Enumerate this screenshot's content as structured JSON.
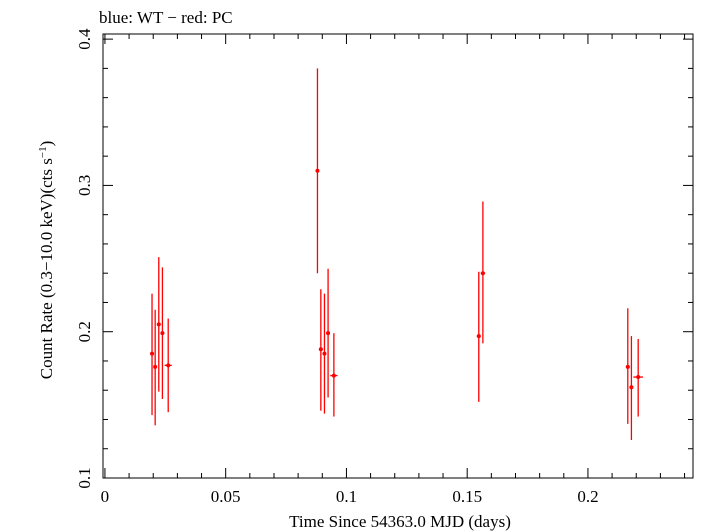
{
  "chart_data": {
    "type": "scatter",
    "title": "blue: WT − red: PC",
    "xlabel": "Time Since 54363.0 MJD (days)",
    "ylabel_main": "Count Rate (0.3−10.0 keV)(cts s",
    "ylabel_sup": "−1",
    "ylabel_close": ")",
    "xlim": [
      -0.0008,
      0.2435
    ],
    "ylim": [
      0.1,
      0.4035
    ],
    "x_ticks": [
      {
        "value": 0,
        "label": "0"
      },
      {
        "value": 0.05,
        "label": "0.05"
      },
      {
        "value": 0.1,
        "label": "0.1"
      },
      {
        "value": 0.15,
        "label": "0.15"
      },
      {
        "value": 0.2,
        "label": "0.2"
      }
    ],
    "x_minor_step": 0.01,
    "y_ticks": [
      {
        "value": 0.1,
        "label": "0.1"
      },
      {
        "value": 0.2,
        "label": "0.2"
      },
      {
        "value": 0.3,
        "label": "0.3"
      },
      {
        "value": 0.4,
        "label": "0.4"
      }
    ],
    "y_minor_step": 0.02,
    "series": [
      {
        "name": "PC",
        "color": "#ff0000",
        "points": [
          {
            "x": 0.0195,
            "y": 0.185,
            "xerr": 0.0008,
            "yerr": [
              0.042,
              0.041
            ]
          },
          {
            "x": 0.0208,
            "y": 0.176,
            "xerr": 0.0007,
            "yerr": [
              0.04,
              0.039
            ]
          },
          {
            "x": 0.0223,
            "y": 0.205,
            "xerr": 0.0008,
            "yerr": [
              0.046,
              0.046
            ]
          },
          {
            "x": 0.0238,
            "y": 0.199,
            "xerr": 0.0008,
            "yerr": [
              0.045,
              0.045
            ]
          },
          {
            "x": 0.0262,
            "y": 0.177,
            "xerr": 0.0015,
            "yerr": [
              0.032,
              0.032
            ]
          },
          {
            "x": 0.088,
            "y": 0.31,
            "xerr": 0.0005,
            "yerr": [
              0.07,
              0.07
            ]
          },
          {
            "x": 0.0894,
            "y": 0.188,
            "xerr": 0.0008,
            "yerr": [
              0.042,
              0.041
            ]
          },
          {
            "x": 0.0909,
            "y": 0.185,
            "xerr": 0.0007,
            "yerr": [
              0.041,
              0.041
            ]
          },
          {
            "x": 0.0924,
            "y": 0.199,
            "xerr": 0.0008,
            "yerr": [
              0.044,
              0.044
            ]
          },
          {
            "x": 0.0948,
            "y": 0.17,
            "xerr": 0.0015,
            "yerr": [
              0.028,
              0.029
            ]
          },
          {
            "x": 0.1548,
            "y": 0.197,
            "xerr": 0.0008,
            "yerr": [
              0.045,
              0.044
            ]
          },
          {
            "x": 0.1565,
            "y": 0.24,
            "xerr": 0.0009,
            "yerr": [
              0.048,
              0.049
            ]
          },
          {
            "x": 0.2165,
            "y": 0.176,
            "xerr": 0.0008,
            "yerr": [
              0.039,
              0.04
            ]
          },
          {
            "x": 0.218,
            "y": 0.162,
            "xerr": 0.0007,
            "yerr": [
              0.036,
              0.035
            ]
          },
          {
            "x": 0.2208,
            "y": 0.169,
            "xerr": 0.002,
            "yerr": [
              0.027,
              0.026
            ]
          }
        ]
      }
    ]
  }
}
